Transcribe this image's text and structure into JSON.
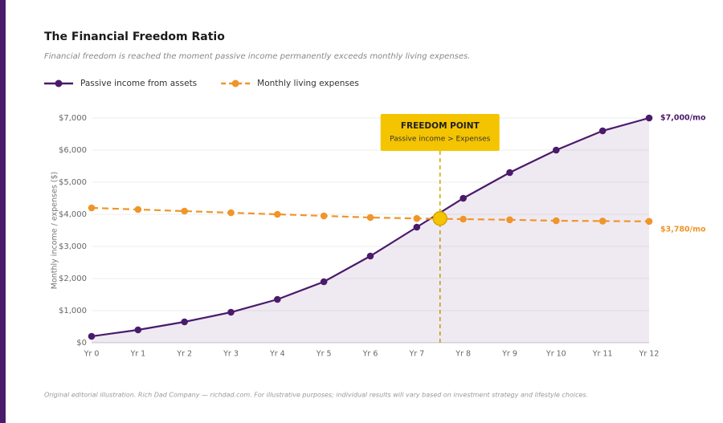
{
  "chart_data": {
    "type": "line",
    "title": "The Financial Freedom Ratio",
    "subtitle": "Financial freedom is reached the moment passive income permanently exceeds monthly living expenses.",
    "y_label": "Monthly income / expenses ($)",
    "footnote": "Original editorial illustration. Rich Dad Company — richdad.com. For illustrative purposes; individual results will vary based on investment strategy and lifestyle choices.",
    "categories": [
      "Yr 0",
      "Yr 1",
      "Yr 2",
      "Yr 3",
      "Yr 4",
      "Yr 5",
      "Yr 6",
      "Yr 7",
      "Yr 8",
      "Yr 9",
      "Yr 10",
      "Yr 11",
      "Yr 12"
    ],
    "series": [
      {
        "name": "Passive income from assets",
        "color": "#4a1a6b",
        "dash": false,
        "area": true,
        "values": [
          200,
          400,
          650,
          950,
          1350,
          1900,
          2700,
          3600,
          4500,
          5300,
          6000,
          6600,
          7000
        ],
        "value_labels": [
          null,
          null,
          null,
          null,
          null,
          null,
          null,
          null,
          null,
          null,
          null,
          null,
          "$7,000/mo"
        ]
      },
      {
        "name": "Monthly living expenses",
        "color": "#f0952a",
        "dash": true,
        "area": false,
        "values": [
          4200,
          4150,
          4100,
          4050,
          4000,
          3950,
          3900,
          3870,
          3850,
          3830,
          3800,
          3790,
          3780
        ],
        "value_labels": [
          null,
          null,
          null,
          null,
          null,
          null,
          null,
          null,
          null,
          null,
          null,
          null,
          "$3,780/mo"
        ]
      }
    ],
    "freedom_point": {
      "x": 7.5,
      "y": 3870,
      "title": "FREEDOM POINT",
      "text": "Passive income > Expenses",
      "color": "#f5c400"
    },
    "ylim": [
      0,
      7000
    ],
    "yticks": [
      {
        "value": 0,
        "label": "$0"
      },
      {
        "value": 1000,
        "label": "$1,000"
      },
      {
        "value": 2000,
        "label": "$2,000"
      },
      {
        "value": 3000,
        "label": "$3,000"
      },
      {
        "value": 4000,
        "label": "$4,000"
      },
      {
        "value": 5000,
        "label": "$5,000"
      },
      {
        "value": 6000,
        "label": "$6,000"
      },
      {
        "value": 7000,
        "label": "$7,000"
      }
    ],
    "grid": true
  }
}
